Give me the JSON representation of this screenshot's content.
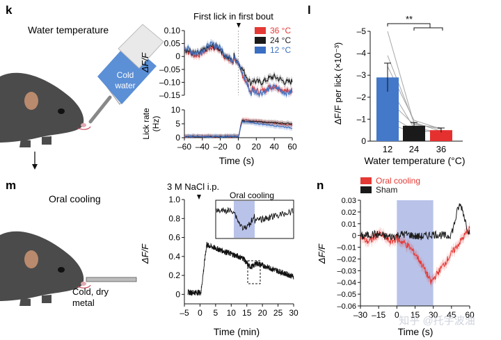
{
  "colors": {
    "red": "#e53935",
    "black": "#1a1a1a",
    "blue": "#3a6fc4",
    "bar_blue": "#4478c8",
    "bar_red": "#e53030",
    "shade_blue": "#b9c2e8",
    "mouse": "#4b4b4b",
    "ear": "#b98a6d",
    "gray": "#a6a6a6",
    "bottle": "#5b8fd6"
  },
  "panels": {
    "k": {
      "letter": "k",
      "title": "Water temperature",
      "bottle_label_1": "Cold",
      "bottle_label_2": "water"
    },
    "l": {
      "letter": "l",
      "significance": "**"
    },
    "m": {
      "letter": "m",
      "title": "Oral cooling",
      "metal_label_1": "Cold, dry",
      "metal_label_2": "metal"
    },
    "n": {
      "letter": "n"
    }
  },
  "watermark": "知乎 @托宇波油",
  "chart_data": [
    {
      "id": "k_top",
      "type": "line",
      "annotation": "First lick in first bout",
      "ylabel": "ΔF/F",
      "ylim": [
        -0.15,
        0.1
      ],
      "xlim": [
        -60,
        60
      ],
      "yticks": [
        "0.10",
        "0.05",
        "0",
        "–0.05",
        "–0.10",
        "–0.15"
      ],
      "ytick_values": [
        0.1,
        0.05,
        0,
        -0.05,
        -0.1,
        -0.15
      ],
      "legend": [
        "36 °C",
        "24 °C",
        "12 °C"
      ],
      "series": [
        {
          "name": "36 °C",
          "color": "red",
          "pre": 0.02,
          "post": -0.125
        },
        {
          "name": "24 °C",
          "color": "black",
          "pre": 0.025,
          "post": -0.09
        },
        {
          "name": "12 °C",
          "color": "blue",
          "pre": 0.03,
          "post": -0.13
        }
      ]
    },
    {
      "id": "k_bottom",
      "type": "line",
      "ylabel_1": "Lick rate",
      "ylabel_2": "(Hz)",
      "ylim": [
        0,
        10
      ],
      "xlim": [
        -60,
        60
      ],
      "yticks": [
        "10",
        "5",
        "0"
      ],
      "ytick_values": [
        10,
        5,
        0
      ],
      "xticks": [
        "–60",
        "–40",
        "–20",
        "0",
        "20",
        "40",
        "60"
      ],
      "xtick_values": [
        -60,
        -40,
        -20,
        0,
        20,
        40,
        60
      ],
      "xlabel": "Time (s)",
      "series": [
        {
          "name": "36 °C",
          "color": "red",
          "peak": 6.5,
          "end": 4.5
        },
        {
          "name": "24 °C",
          "color": "black",
          "peak": 6.0,
          "end": 5.0
        },
        {
          "name": "12 °C",
          "color": "blue",
          "peak": 5.8,
          "end": 3.5
        }
      ]
    },
    {
      "id": "l",
      "type": "bar",
      "ylabel": "ΔF/F per lick (×10⁻³)",
      "xlabel": "Water temperature (°C)",
      "categories": [
        "12",
        "24",
        "36"
      ],
      "values": [
        -2.9,
        -0.7,
        -0.5
      ],
      "errors": [
        0.65,
        0.15,
        0.1
      ],
      "ylim": [
        0,
        -5
      ],
      "yticks": [
        "–5",
        "–4",
        "–3",
        "–2",
        "–1",
        "0"
      ],
      "ytick_values": [
        -5,
        -4,
        -3,
        -2,
        -1,
        0
      ],
      "individual_lines": [
        [
          -5.0,
          -0.8,
          -0.55
        ],
        [
          -3.9,
          -0.85,
          -0.45
        ],
        [
          -3.4,
          -0.95,
          -0.55
        ],
        [
          -2.6,
          -0.6,
          -0.4
        ],
        [
          -1.9,
          -0.75,
          -0.6
        ],
        [
          -1.2,
          -0.5,
          -0.4
        ],
        [
          -0.8,
          -0.4,
          -0.5
        ]
      ],
      "significance": "**"
    },
    {
      "id": "m",
      "type": "line",
      "annotation": "3 M NaCl i.p.",
      "inset_label": "Oral cooling",
      "ylabel": "ΔF/F",
      "xlabel": "Time (min)",
      "ylim": [
        -0.1,
        1.0
      ],
      "xlim": [
        -5,
        30
      ],
      "yticks": [
        "1.0",
        "0.8",
        "0.6",
        "0.4",
        "0.2",
        "0"
      ],
      "ytick_values": [
        1.0,
        0.8,
        0.6,
        0.4,
        0.2,
        0
      ],
      "xticks": [
        "–5",
        "0",
        "5",
        "10",
        "15",
        "20",
        "25",
        "30"
      ],
      "xtick_values": [
        -5,
        0,
        5,
        10,
        15,
        20,
        25,
        30
      ]
    },
    {
      "id": "n",
      "type": "line",
      "ylabel": "ΔF/F",
      "xlabel": "Time (s)",
      "ylim": [
        -0.06,
        0.03
      ],
      "xlim": [
        -30,
        60
      ],
      "yticks": [
        "0.03",
        "0.02",
        "0.01",
        "0",
        "–0.01",
        "–0.02",
        "–0.03",
        "–0.04",
        "–0.05",
        "–0.06"
      ],
      "ytick_values": [
        0.03,
        0.02,
        0.01,
        0,
        -0.01,
        -0.02,
        -0.03,
        -0.04,
        -0.05,
        -0.06
      ],
      "xticks": [
        "–30",
        "–15",
        "0",
        "15",
        "30",
        "45",
        "60"
      ],
      "xtick_values": [
        -30,
        -15,
        0,
        15,
        30,
        45,
        60
      ],
      "shaded_range": [
        0,
        30
      ],
      "legend": [
        "Oral cooling",
        "Sham"
      ],
      "series": [
        {
          "name": "Oral cooling",
          "color": "red",
          "min": -0.04,
          "min_t": 28
        },
        {
          "name": "Sham",
          "color": "black",
          "bump": 0.025,
          "bump_t": 52
        }
      ]
    }
  ]
}
